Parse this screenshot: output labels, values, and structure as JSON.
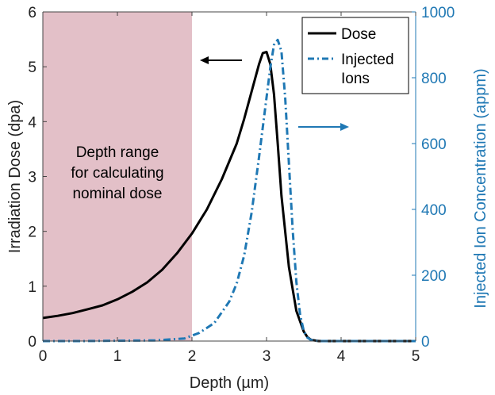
{
  "chart_data": {
    "type": "line",
    "xlabel": "Depth (µm)",
    "ylabel": "Irradiation Dose (dpa)",
    "y2label": "Injected Ion Concentration (appm)",
    "xlim": [
      0,
      5
    ],
    "ylim": [
      0,
      6
    ],
    "y2lim": [
      0,
      1000
    ],
    "xticks": [
      0,
      1,
      2,
      3,
      4,
      5
    ],
    "yticks": [
      0,
      1,
      2,
      3,
      4,
      5,
      6
    ],
    "y2ticks": [
      0,
      200,
      400,
      600,
      800,
      1000
    ],
    "shaded_region": {
      "x": [
        0,
        2
      ],
      "label": "Depth range\nfor calculating\nnominal dose",
      "color": "#e3c0c8"
    },
    "colors": {
      "dose": "#000000",
      "ions": "#1f78b4",
      "right_axis": "#1f78b4"
    },
    "legend": {
      "position": "top-right",
      "entries": [
        "Dose",
        "Injected\nIons"
      ]
    },
    "series": [
      {
        "name": "Dose",
        "axis": "left",
        "style": "solid",
        "x": [
          0,
          0.2,
          0.4,
          0.6,
          0.8,
          1.0,
          1.2,
          1.4,
          1.6,
          1.8,
          2.0,
          2.2,
          2.4,
          2.6,
          2.7,
          2.8,
          2.9,
          2.95,
          3.0,
          3.05,
          3.1,
          3.15,
          3.2,
          3.3,
          3.4,
          3.5,
          3.55,
          3.6,
          3.7,
          4.0,
          5.0
        ],
        "y": [
          0.42,
          0.46,
          0.51,
          0.58,
          0.65,
          0.76,
          0.9,
          1.07,
          1.3,
          1.6,
          1.96,
          2.4,
          2.95,
          3.6,
          4.05,
          4.55,
          5.05,
          5.25,
          5.27,
          5.05,
          4.5,
          3.6,
          2.65,
          1.35,
          0.55,
          0.17,
          0.07,
          0.02,
          0,
          0,
          0
        ]
      },
      {
        "name": "Injected Ions",
        "axis": "right",
        "style": "dashdot",
        "x": [
          0,
          0.5,
          1.0,
          1.5,
          1.9,
          2.1,
          2.3,
          2.5,
          2.6,
          2.7,
          2.8,
          2.9,
          3.0,
          3.05,
          3.1,
          3.15,
          3.2,
          3.25,
          3.3,
          3.35,
          3.4,
          3.45,
          3.5,
          3.55,
          3.6,
          3.7,
          4.0,
          5.0
        ],
        "y": [
          0,
          0,
          1,
          2,
          8,
          25,
          55,
          120,
          175,
          260,
          390,
          560,
          740,
          830,
          900,
          915,
          880,
          740,
          540,
          340,
          180,
          80,
          30,
          10,
          3,
          0,
          0,
          0
        ]
      }
    ]
  }
}
